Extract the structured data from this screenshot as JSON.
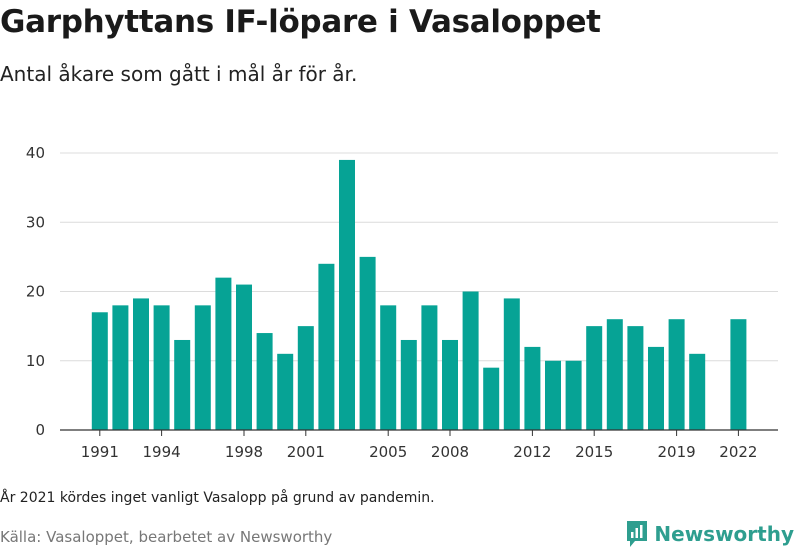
{
  "header": {
    "title": "Garphyttans IF-löpare i Vasaloppet",
    "subtitle": "Antal åkare som gått i mål år för år."
  },
  "footer": {
    "note": "År 2021 kördes inget vanligt Vasalopp på grund av pandemin.",
    "source": "Källa: Vasaloppet, bearbetet av Newsworthy",
    "brand": "Newsworthy",
    "brand_icon": "newsworthy-logo-icon",
    "brand_color": "#2e9e8f"
  },
  "chart_data": {
    "type": "bar",
    "categories": [
      "1991",
      "1992",
      "1993",
      "1994",
      "1995",
      "1996",
      "1997",
      "1998",
      "1999",
      "2000",
      "2001",
      "2002",
      "2003",
      "2004",
      "2005",
      "2006",
      "2007",
      "2008",
      "2009",
      "2010",
      "2011",
      "2012",
      "2013",
      "2014",
      "2015",
      "2016",
      "2017",
      "2018",
      "2019",
      "2020",
      "2021",
      "2022"
    ],
    "values": [
      17,
      18,
      19,
      18,
      13,
      18,
      22,
      21,
      14,
      11,
      15,
      24,
      39,
      25,
      18,
      13,
      18,
      13,
      20,
      9,
      19,
      12,
      10,
      10,
      15,
      16,
      15,
      12,
      16,
      11,
      null,
      16
    ],
    "x_tick_labels": [
      "1991",
      "1994",
      "1998",
      "2001",
      "2005",
      "2008",
      "2012",
      "2015",
      "2019",
      "2022"
    ],
    "y_ticks": [
      0,
      10,
      20,
      30,
      40
    ],
    "ylim": [
      0,
      40
    ],
    "grid": true,
    "bar_color": "#06a395",
    "title": "Garphyttans IF-löpare i Vasaloppet",
    "subtitle": "Antal åkare som gått i mål år för år."
  }
}
